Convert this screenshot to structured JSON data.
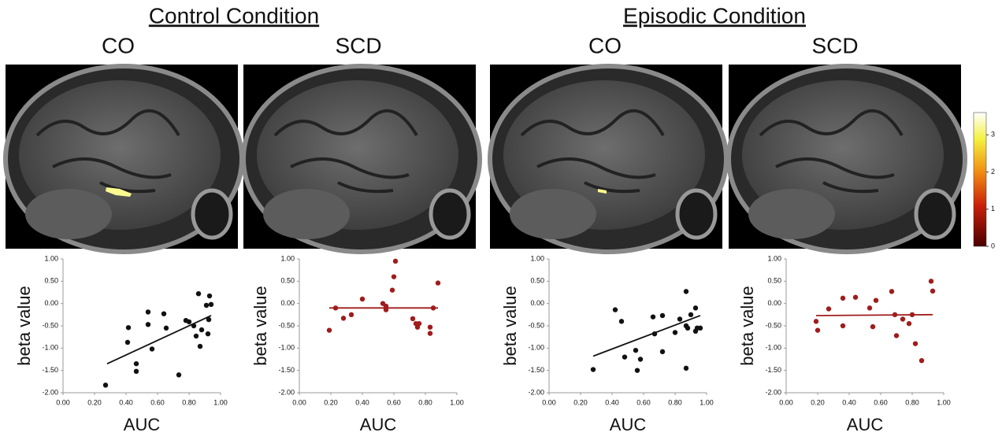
{
  "header": [
    {
      "title": "Control Condition",
      "groups": [
        "CO",
        "SCD"
      ]
    },
    {
      "title": "Episodic Condition",
      "groups": [
        "CO",
        "SCD"
      ]
    }
  ],
  "colorbar": {
    "lim": [
      0,
      3.6
    ],
    "ticks": [
      0,
      1,
      2,
      3
    ]
  },
  "chart_data": [
    {
      "type": "scatter",
      "xlabel": "AUC",
      "ylabel": "beta value",
      "color": "#111111",
      "xlim": [
        0,
        1
      ],
      "ylim": [
        -2,
        1
      ],
      "xticks": [
        {
          "value": 0,
          "label": "0.00"
        },
        {
          "value": 0.2,
          "label": "0.20"
        },
        {
          "value": 0.4,
          "label": "0.40"
        },
        {
          "value": 0.6,
          "label": "0.60"
        },
        {
          "value": 0.8,
          "label": "0.80"
        },
        {
          "value": 1,
          "label": "1.00"
        }
      ],
      "yticks": [
        {
          "value": 1,
          "label": "1.00"
        },
        {
          "value": 0.5,
          "label": "0.50"
        },
        {
          "value": 0,
          "label": "0.00"
        },
        {
          "value": -0.5,
          "label": "-0.50"
        },
        {
          "value": -1,
          "label": "-1.00"
        },
        {
          "value": -1.5,
          "label": "-1.50"
        },
        {
          "value": -2,
          "label": "-2.00"
        }
      ],
      "x": [
        0.27,
        0.41,
        0.415,
        0.465,
        0.465,
        0.54,
        0.54,
        0.565,
        0.64,
        0.655,
        0.735,
        0.78,
        0.8,
        0.83,
        0.845,
        0.86,
        0.87,
        0.88,
        0.91,
        0.92,
        0.925,
        0.93,
        0.94
      ],
      "values": [
        -1.83,
        -0.87,
        -0.54,
        -1.35,
        -1.52,
        -0.19,
        -0.47,
        -1.02,
        -0.23,
        -0.55,
        -1.6,
        -0.38,
        -0.41,
        -0.5,
        -0.73,
        0.22,
        -0.96,
        -0.59,
        -0.04,
        -0.68,
        -0.36,
        0.17,
        -0.02
      ],
      "trend": {
        "x": [
          0.28,
          0.94
        ],
        "values": [
          -1.35,
          -0.27
        ]
      }
    },
    {
      "type": "scatter",
      "xlabel": "AUC",
      "ylabel": "beta value",
      "color": "#a01c1c",
      "xlim": [
        0,
        1
      ],
      "ylim": [
        -2,
        1
      ],
      "xticks": [
        {
          "value": 0,
          "label": "0.00"
        },
        {
          "value": 0.2,
          "label": "0.20"
        },
        {
          "value": 0.4,
          "label": "0.40"
        },
        {
          "value": 0.6,
          "label": "0.60"
        },
        {
          "value": 0.8,
          "label": "0.80"
        },
        {
          "value": 1,
          "label": "1.00"
        }
      ],
      "yticks": [
        {
          "value": 1,
          "label": "1.00"
        },
        {
          "value": 0.5,
          "label": "0.50"
        },
        {
          "value": 0,
          "label": "0.00"
        },
        {
          "value": -0.5,
          "label": "-0.50"
        },
        {
          "value": -1,
          "label": "-1.00"
        },
        {
          "value": -1.5,
          "label": "-1.50"
        },
        {
          "value": -2,
          "label": "-2.00"
        }
      ],
      "x": [
        0.19,
        0.23,
        0.28,
        0.33,
        0.4,
        0.53,
        0.55,
        0.55,
        0.59,
        0.6,
        0.61,
        0.72,
        0.74,
        0.75,
        0.76,
        0.83,
        0.83,
        0.85,
        0.88
      ],
      "values": [
        -0.6,
        -0.1,
        -0.33,
        -0.25,
        0.1,
        0.0,
        -0.06,
        -0.14,
        0.3,
        0.6,
        0.95,
        -0.34,
        -0.45,
        -0.53,
        -0.45,
        -0.53,
        -0.67,
        -0.1,
        0.46
      ],
      "trend": {
        "x": [
          0.19,
          0.88
        ],
        "values": [
          -0.1,
          -0.1
        ]
      }
    },
    {
      "type": "scatter",
      "xlabel": "AUC",
      "ylabel": "beta value",
      "color": "#111111",
      "xlim": [
        0,
        1
      ],
      "ylim": [
        -2,
        1
      ],
      "xticks": [
        {
          "value": 0,
          "label": "0.00"
        },
        {
          "value": 0.2,
          "label": "0.20"
        },
        {
          "value": 0.4,
          "label": "0.40"
        },
        {
          "value": 0.6,
          "label": "0.60"
        },
        {
          "value": 0.8,
          "label": "0.80"
        },
        {
          "value": 1,
          "label": "1.00"
        }
      ],
      "yticks": [
        {
          "value": 1,
          "label": "1.00"
        },
        {
          "value": 0.5,
          "label": "0.50"
        },
        {
          "value": 0,
          "label": "0.00"
        },
        {
          "value": -0.5,
          "label": "-0.50"
        },
        {
          "value": -1,
          "label": "-1.00"
        },
        {
          "value": -1.5,
          "label": "-1.50"
        },
        {
          "value": -2,
          "label": "-2.00"
        }
      ],
      "x": [
        0.28,
        0.42,
        0.46,
        0.48,
        0.55,
        0.56,
        0.58,
        0.66,
        0.67,
        0.72,
        0.72,
        0.8,
        0.83,
        0.87,
        0.87,
        0.87,
        0.88,
        0.9,
        0.93,
        0.93,
        0.94,
        0.96
      ],
      "values": [
        -1.48,
        -0.14,
        -0.4,
        -1.2,
        -1.05,
        -1.5,
        -1.25,
        -0.3,
        -0.68,
        -0.27,
        -1.08,
        -0.65,
        -0.35,
        0.27,
        -0.5,
        -1.45,
        -0.55,
        -0.25,
        -0.1,
        -0.62,
        -0.55,
        -0.55
      ],
      "trend": {
        "x": [
          0.28,
          0.96
        ],
        "values": [
          -1.18,
          -0.27
        ]
      }
    },
    {
      "type": "scatter",
      "xlabel": "AUC",
      "ylabel": "beta value",
      "color": "#a01c1c",
      "xlim": [
        0,
        1
      ],
      "ylim": [
        -2,
        1
      ],
      "xticks": [
        {
          "value": 0,
          "label": "0.00"
        },
        {
          "value": 0.2,
          "label": "0.20"
        },
        {
          "value": 0.4,
          "label": "0.40"
        },
        {
          "value": 0.6,
          "label": "0.60"
        },
        {
          "value": 0.8,
          "label": "0.80"
        },
        {
          "value": 1,
          "label": "1.00"
        }
      ],
      "yticks": [
        {
          "value": 1,
          "label": "1.00"
        },
        {
          "value": 0.5,
          "label": "0.50"
        },
        {
          "value": 0,
          "label": "0.00"
        },
        {
          "value": -0.5,
          "label": "-0.50"
        },
        {
          "value": -1,
          "label": "-1.00"
        },
        {
          "value": -1.5,
          "label": "-1.50"
        },
        {
          "value": -2,
          "label": "-2.00"
        }
      ],
      "x": [
        0.19,
        0.2,
        0.27,
        0.36,
        0.36,
        0.44,
        0.53,
        0.55,
        0.57,
        0.67,
        0.69,
        0.7,
        0.74,
        0.78,
        0.8,
        0.82,
        0.86,
        0.92,
        0.93
      ],
      "values": [
        -0.4,
        -0.6,
        -0.12,
        0.12,
        -0.5,
        0.14,
        -0.1,
        -0.52,
        0.07,
        0.27,
        -0.25,
        -0.72,
        -0.35,
        -0.45,
        -0.25,
        -0.9,
        -1.28,
        0.5,
        0.28
      ],
      "trend": {
        "x": [
          0.19,
          0.93
        ],
        "values": [
          -0.27,
          -0.25
        ]
      }
    }
  ]
}
